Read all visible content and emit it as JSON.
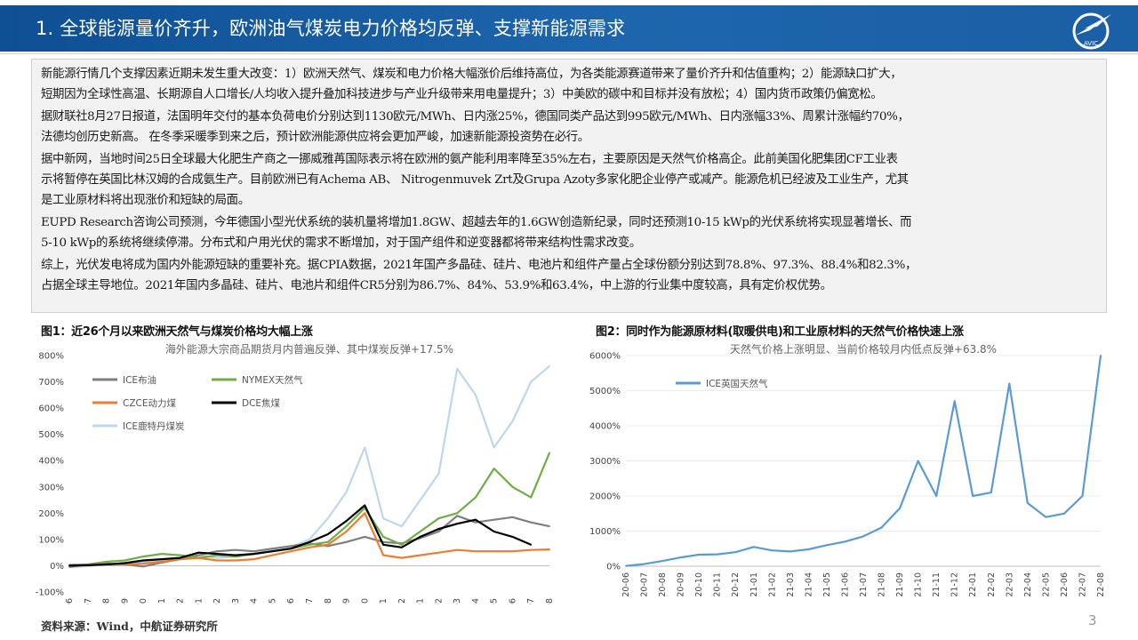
{
  "header": {
    "title": "1. 全球能源量价齐升，欧洲油气煤炭电力价格均反弹、支撑新能源需求",
    "logo_text": "AVIC"
  },
  "paragraphs": [
    [
      "新能源行情几个支撑因素近期未发生重大改变：1）欧洲天然气、煤炭和电力价格大幅涨价后维持高位，为各类能源赛道带来了量价齐升和估值重构；2）能源缺口扩大，",
      "短期因为全球性高温、长期源自人口增长/人均收入提升叠加科技进步与产业升级带来用电量提升；3）中美欧的碳中和目标并没有放松；4）国内货币政策仍偏宽松。"
    ],
    [
      "据财联社8月27日报道，法国明年交付的基本负荷电价分别达到1130欧元/MWh、日内涨25%，德国同类产品达到995欧元/MWh、日内涨幅33%、周累计涨幅约70%，",
      "法德均创历史新高。 在冬季采暖季到来之后，预计欧洲能源供应将会更加严峻，加速新能源投资势在必行。"
    ],
    [
      "据中新网，当地时间25日全球最大化肥生产商之一挪威雅苒国际表示将在欧洲的氨产能利用率降至35%左右，主要原因是天然气价格高企。此前美国化肥集团CF工业表",
      "示将暂停在英国比林汉姆的合成氨生产。目前欧洲已有Achema AB、 Nitrogenmuvek Zrt及Grupa Azoty多家化肥企业停产或减产。能源危机已经波及工业生产，尤其",
      "是工业原材料将出现涨价和短缺的局面。"
    ],
    [
      "EUPD Research咨询公司预测，今年德国小型光伏系统的装机量将增加1.8GW、超越去年的1.6GW创造新纪录，同时还预测10-15 kWp的光伏系统将实现显著增长、而",
      "5-10 kWp的系统将继续停滞。分布式和户用光伏的需求不断增加，对于国产组件和逆变器都将带来结构性需求改变。"
    ],
    [
      "综上，光伏发电将成为国内外能源短缺的重要补充。据CPIA数据，2021年国产多晶硅、硅片、电池片和组件产量占全球份额分别达到78.8%、97.3%、88.4%和82.3%，",
      "占据全球主导地位。2021年国内多晶硅、硅片、电池片和组件CR5分别为86.7%、84%、53.9%和63.4%，中上游的行业集中度较高，具有定价权优势。"
    ]
  ],
  "figures": [
    {
      "label": "图1：近26个月以来欧洲天然气与煤炭价格均大幅上涨"
    },
    {
      "label": "图2：同时作为能源原材料(取暖供电)和工业原材料的天然气价格快速上涨"
    }
  ],
  "source": "资料来源：Wind，中航证券研究所",
  "page_number": "3",
  "chart_data": [
    {
      "type": "line",
      "title": "海外能源大宗商品期货月内普遍反弹、其中煤炭反弹+17.5%",
      "x": [
        "20-06",
        "20-07",
        "20-08",
        "20-09",
        "20-10",
        "20-11",
        "20-12",
        "21-01",
        "21-02",
        "21-03",
        "21-04",
        "21-05",
        "21-06",
        "21-07",
        "21-08",
        "21-09",
        "21-10",
        "21-11",
        "21-12",
        "22-01",
        "22-02",
        "22-03",
        "22-04",
        "22-05",
        "22-06",
        "22-07",
        "22-08"
      ],
      "x_ticks": [
        "20-06",
        "20-07",
        "20-08",
        "20-09",
        "20-10",
        "20-11",
        "20-12",
        "21-01",
        "21-02",
        "21-03",
        "21-04",
        "21-05",
        "21-06",
        "21-07",
        "21-08",
        "21-09",
        "21-10",
        "21-11",
        "21-12",
        "22-01",
        "22-02",
        "22-03",
        "22-04",
        "22-05",
        "22-06",
        "22-07",
        "22-08"
      ],
      "y_ticks": [
        "800%",
        "700%",
        "600%",
        "500%",
        "400%",
        "300%",
        "200%",
        "100%",
        "0%",
        "-100%"
      ],
      "ylim": [
        -100,
        800
      ],
      "legend_position": "top-left",
      "series": [
        {
          "name": "ICE布油",
          "color": "#7f7f7f",
          "values": [
            3,
            5,
            8,
            5,
            -3,
            12,
            25,
            40,
            55,
            60,
            55,
            65,
            75,
            85,
            75,
            90,
            110,
            90,
            85,
            105,
            130,
            190,
            165,
            175,
            185,
            165,
            150
          ]
        },
        {
          "name": "NYMEX天然气",
          "color": "#70ad47",
          "values": [
            -5,
            5,
            15,
            20,
            35,
            45,
            40,
            30,
            40,
            35,
            45,
            55,
            65,
            80,
            90,
            150,
            220,
            110,
            80,
            130,
            180,
            200,
            260,
            370,
            300,
            260,
            430
          ]
        },
        {
          "name": "CZCE动力煤",
          "color": "#ed7d31",
          "values": [
            0,
            3,
            5,
            5,
            8,
            15,
            25,
            30,
            20,
            20,
            25,
            40,
            55,
            70,
            80,
            130,
            200,
            40,
            30,
            40,
            50,
            60,
            55,
            55,
            55,
            60,
            62
          ]
        },
        {
          "name": "DCE焦煤",
          "color": "#000000",
          "values": [
            0,
            2,
            5,
            10,
            20,
            25,
            30,
            50,
            45,
            40,
            45,
            55,
            65,
            90,
            120,
            170,
            230,
            80,
            70,
            110,
            140,
            160,
            175,
            130,
            110,
            80,
            null
          ]
        },
        {
          "name": "ICE鹿特丹煤炭",
          "color": "#bdd7ee",
          "values": [
            -5,
            -2,
            5,
            10,
            15,
            20,
            25,
            40,
            30,
            35,
            45,
            60,
            70,
            100,
            180,
            280,
            450,
            180,
            150,
            250,
            350,
            750,
            650,
            450,
            550,
            700,
            760
          ]
        }
      ]
    },
    {
      "type": "line",
      "title": "天然气价格上涨明显、当前价格较月内低点反弹+63.8%",
      "x": [
        "20-06",
        "20-07",
        "20-08",
        "20-09",
        "20-10",
        "20-11",
        "20-12",
        "21-01",
        "21-02",
        "21-03",
        "21-04",
        "21-05",
        "21-06",
        "21-07",
        "21-08",
        "21-09",
        "21-10",
        "21-11",
        "21-12",
        "22-01",
        "22-02",
        "22-03",
        "22-04",
        "22-05",
        "22-06",
        "22-07",
        "22-08"
      ],
      "x_ticks": [
        "20-06",
        "20-07",
        "20-08",
        "20-09",
        "20-10",
        "20-11",
        "20-12",
        "21-01",
        "21-02",
        "21-03",
        "21-04",
        "21-05",
        "21-06",
        "21-07",
        "21-08",
        "21-09",
        "21-10",
        "21-11",
        "21-12",
        "22-01",
        "22-02",
        "22-03",
        "22-04",
        "22-05",
        "22-06",
        "22-07",
        "22-08"
      ],
      "y_ticks": [
        "6000%",
        "5000%",
        "4000%",
        "3000%",
        "2000%",
        "1000%",
        "0%"
      ],
      "ylim": [
        0,
        6000
      ],
      "legend_position": "top-left",
      "series": [
        {
          "name": "ICE英国天然气",
          "color": "#5b9bd5",
          "values": [
            10,
            60,
            150,
            250,
            330,
            340,
            400,
            550,
            450,
            420,
            480,
            600,
            700,
            850,
            1100,
            1650,
            3000,
            2000,
            4700,
            2000,
            2100,
            5200,
            1800,
            1400,
            1500,
            2000,
            6000
          ]
        }
      ]
    }
  ]
}
